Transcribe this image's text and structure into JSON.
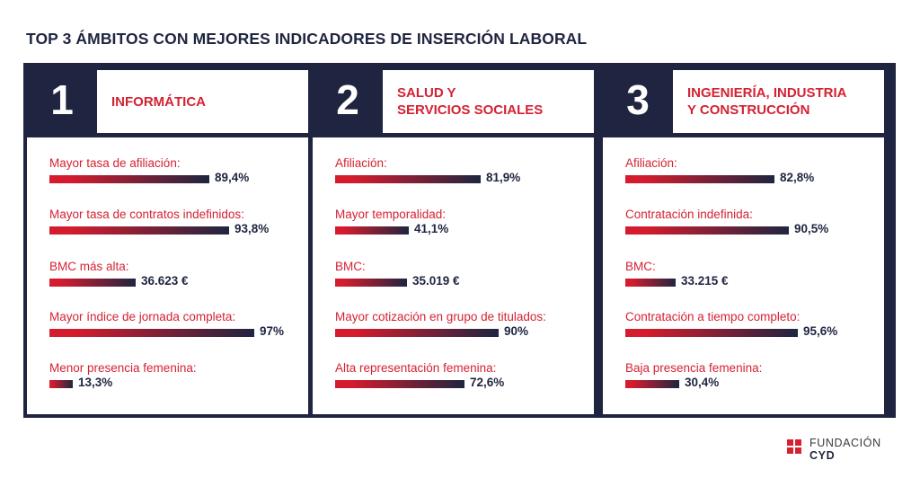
{
  "title": "TOP 3 ÁMBITOS CON MEJORES INDICADORES DE INSERCIÓN LABORAL",
  "colors": {
    "navy": "#1f2540",
    "red": "#d42233"
  },
  "logo": {
    "line1": "FUNDACIÓN",
    "line2": "CYD"
  },
  "panels": [
    {
      "rank": "1",
      "title": "INFORMÁTICA",
      "indicators": [
        {
          "label": "Mayor tasa de afiliación:",
          "value": "89,4%"
        },
        {
          "label": "Mayor tasa de contratos indefinidos:",
          "value": "93,8%"
        },
        {
          "label": "BMC más alta:",
          "value": "36.623 €"
        },
        {
          "label": "Mayor índice de jornada completa:",
          "value": "97%"
        },
        {
          "label": "Menor presencia femenina:",
          "value": "13,3%"
        }
      ]
    },
    {
      "rank": "2",
      "title": "SALUD Y\nSERVICIOS SOCIALES",
      "indicators": [
        {
          "label": "Afiliación:",
          "value": "81,9%"
        },
        {
          "label": "Mayor temporalidad:",
          "value": "41,1%"
        },
        {
          "label": "BMC:",
          "value": "35.019 €"
        },
        {
          "label": "Mayor cotización en grupo de titulados:",
          "value": "90%"
        },
        {
          "label": "Alta representación femenina:",
          "value": "72,6%"
        }
      ]
    },
    {
      "rank": "3",
      "title": "INGENIERÍA, INDUSTRIA\nY CONSTRUCCIÓN",
      "indicators": [
        {
          "label": "Afiliación:",
          "value": "82,8%"
        },
        {
          "label": "Contratación indefinida:",
          "value": "90,5%"
        },
        {
          "label": "BMC:",
          "value": "33.215 €"
        },
        {
          "label": "Contratación a tiempo completo:",
          "value": "95,6%"
        },
        {
          "label": "Baja presencia femenina:",
          "value": "30,4%"
        }
      ]
    }
  ],
  "chart_data": {
    "type": "bar",
    "title": "TOP 3 ÁMBITOS CON MEJORES INDICADORES DE INSERCIÓN LABORAL",
    "groups": [
      {
        "name": "INFORMÁTICA",
        "categories": [
          "Mayor tasa de afiliación:",
          "Mayor tasa de contratos indefinidos:",
          "BMC más alta:",
          "Mayor índice de jornada completa:",
          "Menor presencia femenina:"
        ],
        "values": [
          89.4,
          93.8,
          36623,
          97,
          13.3
        ],
        "units": [
          "%",
          "%",
          "€",
          "%",
          "%"
        ]
      },
      {
        "name": "SALUD Y SERVICIOS SOCIALES",
        "categories": [
          "Afiliación:",
          "Mayor temporalidad:",
          "BMC:",
          "Mayor cotización en grupo de titulados:",
          "Alta representación femenina:"
        ],
        "values": [
          81.9,
          41.1,
          35019,
          90,
          72.6
        ],
        "units": [
          "%",
          "%",
          "€",
          "%",
          "%"
        ]
      },
      {
        "name": "INGENIERÍA, INDUSTRIA Y CONSTRUCCIÓN",
        "categories": [
          "Afiliación:",
          "Contratación indefinida:",
          "BMC:",
          "Contratación a tiempo completo:",
          "Baja presencia femenina:"
        ],
        "values": [
          82.8,
          90.5,
          33215,
          95.6,
          30.4
        ],
        "units": [
          "%",
          "%",
          "€",
          "%",
          "%"
        ]
      }
    ]
  }
}
